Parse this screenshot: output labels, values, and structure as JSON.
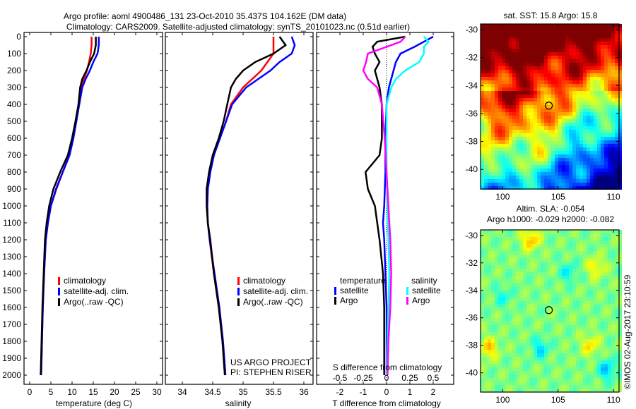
{
  "title_line1": "Argo profile: aoml 4900486_131 23-Oct-2010 35.437S 104.162E (DM data)",
  "title_line2": "Climatology: CARS2009. Satellite-adjusted climatology: synTS_20101023.nc (0.51d earlier)",
  "credit": "©IMOS 02-Aug-2017 23:10:59",
  "project_line1": "US ARGO PROJECT",
  "project_line2": "PI: STEPHEN RISER",
  "colors": {
    "climatology": "#ff0000",
    "satellite": "#0000ff",
    "argo": "#000000",
    "sal_satellite": "#00ffff",
    "sal_argo": "#ff00ff"
  },
  "chart_data": [
    {
      "type": "line",
      "name": "temperature",
      "xlabel": "temperature (deg C)",
      "ylabel": "",
      "xlim": [
        -1.5,
        31.5
      ],
      "ylim": [
        2050,
        0
      ],
      "xticks": [
        0,
        5,
        10,
        15,
        20,
        25,
        30
      ],
      "yticks": [
        0,
        100,
        200,
        300,
        400,
        500,
        600,
        700,
        800,
        900,
        1000,
        1100,
        1200,
        1300,
        1400,
        1500,
        1600,
        1700,
        1800,
        1900,
        2000
      ],
      "legend": [
        "climatology",
        "satellite-adj. clim.",
        "Argo(..raw -QC)"
      ],
      "series": [
        {
          "name": "climatology",
          "color": "#ff0000",
          "depth": [
            0,
            50,
            100,
            150,
            200,
            250,
            300,
            400,
            500,
            600,
            700,
            800,
            900,
            1000,
            1100,
            1200,
            1400,
            1600,
            1800,
            2000
          ],
          "values": [
            14.6,
            14.6,
            14.4,
            14.0,
            13.5,
            12.8,
            12.2,
            11.6,
            11.0,
            10.3,
            9.4,
            7.8,
            6.3,
            5.0,
            4.3,
            3.8,
            3.4,
            3.1,
            2.9,
            2.7
          ]
        },
        {
          "name": "satellite-adj. clim.",
          "color": "#0000ff",
          "depth": [
            0,
            50,
            100,
            150,
            200,
            250,
            300,
            400,
            500,
            600,
            700,
            800,
            900,
            1000,
            1100,
            1200,
            1400,
            1600,
            1800,
            2000
          ],
          "values": [
            16.3,
            16.3,
            16.0,
            15.0,
            14.2,
            13.2,
            12.4,
            11.7,
            11.0,
            10.3,
            9.4,
            7.8,
            6.2,
            5.0,
            4.3,
            3.8,
            3.4,
            3.1,
            2.9,
            2.7
          ]
        },
        {
          "name": "Argo(..raw -QC)",
          "color": "#000000",
          "depth": [
            0,
            50,
            100,
            150,
            200,
            250,
            300,
            400,
            500,
            600,
            700,
            800,
            900,
            1000,
            1100,
            1200,
            1400,
            1600,
            1800,
            2000
          ],
          "values": [
            15.6,
            15.6,
            15.2,
            14.2,
            13.4,
            12.4,
            11.9,
            11.5,
            10.8,
            10.0,
            9.0,
            7.2,
            5.6,
            4.6,
            4.0,
            3.6,
            3.3,
            3.0,
            2.8,
            2.6
          ]
        }
      ]
    },
    {
      "type": "line",
      "name": "salinity",
      "xlabel": "salinity",
      "xlim": [
        33.7,
        36.1
      ],
      "ylim": [
        2050,
        0
      ],
      "xticks": [
        34,
        34.5,
        35,
        35.5,
        36
      ],
      "legend": [
        "climatology",
        "satellite-adj. clim.",
        "Argo(..raw -QC)"
      ],
      "series": [
        {
          "name": "climatology",
          "color": "#ff0000",
          "depth": [
            0,
            50,
            100,
            150,
            200,
            250,
            300,
            400,
            500,
            600,
            700,
            800,
            900,
            1000,
            1100,
            1200,
            1400,
            1600,
            1800,
            2000
          ],
          "values": [
            35.5,
            35.5,
            35.5,
            35.4,
            35.3,
            35.15,
            35.0,
            34.8,
            34.72,
            34.62,
            34.52,
            34.46,
            34.42,
            34.41,
            34.42,
            34.45,
            34.52,
            34.6,
            34.66,
            34.7
          ]
        },
        {
          "name": "satellite-adj. clim.",
          "color": "#0000ff",
          "depth": [
            0,
            50,
            100,
            150,
            200,
            250,
            300,
            400,
            500,
            600,
            700,
            800,
            900,
            1000,
            1100,
            1200,
            1400,
            1600,
            1800,
            2000
          ],
          "values": [
            35.8,
            35.85,
            35.8,
            35.6,
            35.45,
            35.25,
            35.05,
            34.82,
            34.72,
            34.62,
            34.52,
            34.46,
            34.42,
            34.41,
            34.42,
            34.45,
            34.53,
            34.61,
            34.67,
            34.71
          ]
        },
        {
          "name": "Argo(..raw -QC)",
          "color": "#000000",
          "depth": [
            0,
            50,
            100,
            150,
            200,
            250,
            300,
            400,
            500,
            600,
            700,
            800,
            900,
            1000,
            1100,
            1200,
            1400,
            1600,
            1800,
            2000
          ],
          "values": [
            35.6,
            35.7,
            35.5,
            35.2,
            35.0,
            34.88,
            34.8,
            34.74,
            34.68,
            34.6,
            34.5,
            34.44,
            34.4,
            34.4,
            34.42,
            34.46,
            34.52,
            34.6,
            34.66,
            34.7
          ]
        }
      ]
    },
    {
      "type": "line",
      "name": "difference",
      "xlabel": "T difference from climatology",
      "xlabel2": "S difference from climatology",
      "xlim": [
        -3,
        3
      ],
      "xlim_s": [
        -0.75,
        0.75
      ],
      "xticks": [
        -2,
        -1,
        0,
        1,
        2
      ],
      "xticks_s": [
        -0.5,
        -0.25,
        0,
        0.25,
        0.5
      ],
      "legend_t_title": "temperature",
      "legend_s_title": "salinity",
      "legend": [
        "satellite",
        "Argo",
        "satellite",
        "Argo"
      ],
      "series": [
        {
          "name": "T satellite",
          "color": "#0000ff",
          "axis": "T",
          "depth": [
            0,
            30,
            60,
            100,
            150,
            200,
            300,
            400,
            600,
            800,
            1000,
            1100,
            1200,
            1400,
            1600,
            1800,
            2000
          ],
          "values": [
            2.0,
            1.6,
            1.2,
            0.6,
            0.4,
            0.3,
            0.1,
            0.0,
            -0.05,
            -0.05,
            -0.1,
            -0.15,
            -0.1,
            -0.05,
            0,
            0,
            0
          ]
        },
        {
          "name": "T Argo",
          "color": "#000000",
          "axis": "T",
          "depth": [
            0,
            30,
            60,
            100,
            150,
            200,
            300,
            400,
            600,
            700,
            750,
            800,
            900,
            1000,
            1100,
            1200,
            1400,
            1600,
            1800,
            2000
          ],
          "values": [
            0.8,
            -0.4,
            -0.6,
            -0.5,
            -0.3,
            -0.5,
            -0.3,
            -0.2,
            -0.2,
            -0.3,
            -0.6,
            -0.9,
            -0.8,
            -0.5,
            -0.4,
            -0.3,
            -0.15,
            -0.1,
            -0.1,
            -0.1
          ]
        },
        {
          "name": "S satellite",
          "color": "#00ffff",
          "axis": "S",
          "depth": [
            0,
            30,
            60,
            100,
            150,
            200,
            250,
            300,
            400,
            600,
            800,
            1000,
            1200,
            1400,
            1600,
            1800,
            2000
          ],
          "values": [
            0.4,
            0.45,
            0.4,
            0.4,
            0.35,
            0.2,
            0.1,
            0.05,
            0.0,
            0.0,
            0.0,
            0.01,
            0.02,
            0.03,
            0.02,
            0.01,
            0.0
          ]
        },
        {
          "name": "S Argo",
          "color": "#ff00ff",
          "axis": "S",
          "depth": [
            0,
            30,
            60,
            100,
            150,
            200,
            250,
            300,
            400,
            600,
            800,
            1000,
            1200,
            1400,
            1600,
            1800,
            2000
          ],
          "values": [
            0.2,
            0.15,
            0.0,
            -0.2,
            -0.22,
            -0.25,
            -0.2,
            -0.1,
            -0.05,
            -0.02,
            0.0,
            0.02,
            0.04,
            0.05,
            0.04,
            0.02,
            0.01
          ]
        }
      ]
    },
    {
      "type": "heatmap",
      "name": "sst-map",
      "title": "sat. SST: 15.8 Argo: 15.8",
      "xticks": [
        100,
        105,
        110
      ],
      "yticks": [
        -30,
        -32,
        -34,
        -36,
        -38,
        -40
      ],
      "xlim": [
        98,
        110.5
      ],
      "ylim": [
        -41.4,
        -29.6
      ],
      "marker": [
        104.162,
        -35.437
      ]
    },
    {
      "type": "heatmap",
      "name": "sla-map",
      "title_line1": "Altim. SLA: -0.054",
      "title_line2": "Argo h1000: -0.029 h2000: -0.082",
      "xticks": [
        100,
        105,
        110
      ],
      "yticks": [
        -30,
        -32,
        -34,
        -36,
        -38,
        -40
      ],
      "xlim": [
        98,
        110.5
      ],
      "ylim": [
        -41.4,
        -29.6
      ],
      "marker": [
        104.162,
        -35.437
      ]
    }
  ]
}
